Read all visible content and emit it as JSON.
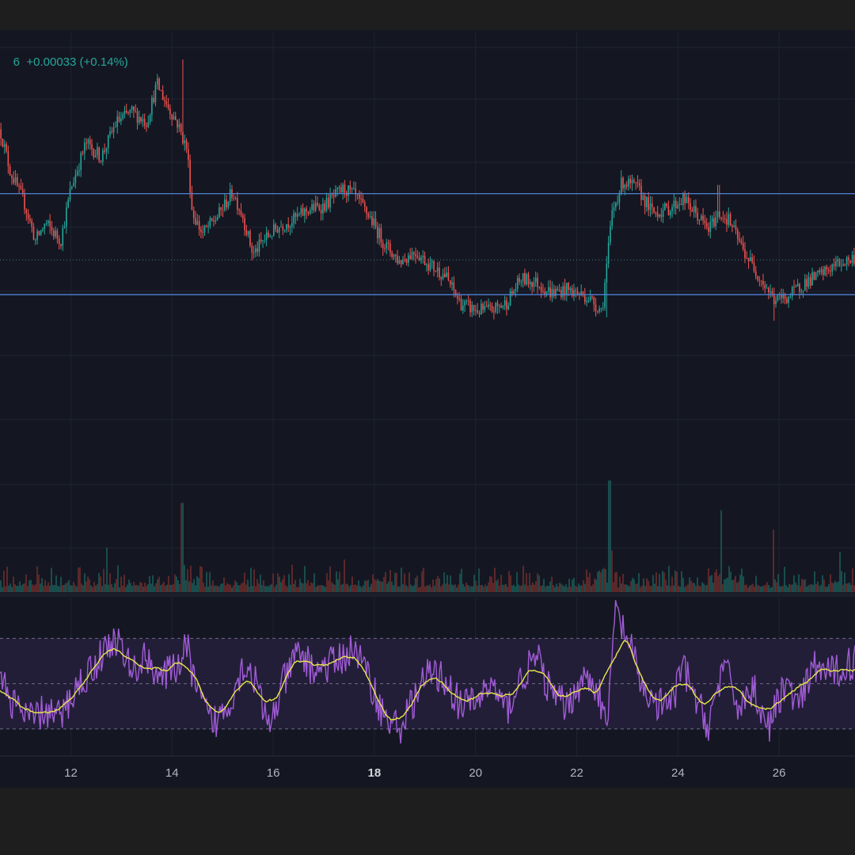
{
  "legend": {
    "prefix": "6",
    "change": "+0.00033",
    "change_pct": "(+0.14%)"
  },
  "colors": {
    "background": "#141722",
    "frame": "#1e1e1e",
    "grid": "#1f2331",
    "up": "#26a69a",
    "down": "#ef5350",
    "hline": "#4f82d6",
    "rsi": "#a05cd6",
    "rsi_ma": "#e8e84a",
    "rsi_band": "#231e38",
    "axis_text": "#b2b5be"
  },
  "chart_data": [
    {
      "type": "candlestick",
      "pane": "price",
      "x_unit": "day of month",
      "x_ticks": [
        {
          "label": "12",
          "bold": false
        },
        {
          "label": "14",
          "bold": false
        },
        {
          "label": "16",
          "bold": false
        },
        {
          "label": "18",
          "bold": true
        },
        {
          "label": "20",
          "bold": false
        },
        {
          "label": "22",
          "bold": false
        },
        {
          "label": "24",
          "bold": false
        },
        {
          "label": "26",
          "bold": false
        }
      ],
      "x_tick_values": [
        12,
        14,
        16,
        18,
        20,
        22,
        24,
        26
      ],
      "x_range": [
        10.6,
        27.5
      ],
      "y_range": [
        0,
        100
      ],
      "price_path": [
        [
          10.6,
          72
        ],
        [
          10.8,
          60
        ],
        [
          11.1,
          50
        ],
        [
          11.3,
          40
        ],
        [
          11.5,
          45
        ],
        [
          11.8,
          40
        ],
        [
          12.0,
          55
        ],
        [
          12.3,
          68
        ],
        [
          12.6,
          64
        ],
        [
          12.9,
          74
        ],
        [
          13.2,
          77
        ],
        [
          13.5,
          74
        ],
        [
          13.7,
          85
        ],
        [
          13.9,
          79
        ],
        [
          14.1,
          74
        ],
        [
          14.3,
          66
        ],
        [
          14.4,
          48
        ],
        [
          14.6,
          42
        ],
        [
          14.9,
          47
        ],
        [
          15.2,
          54
        ],
        [
          15.4,
          47
        ],
        [
          15.6,
          36
        ],
        [
          15.8,
          40
        ],
        [
          16.1,
          44
        ],
        [
          16.4,
          46
        ],
        [
          16.7,
          49
        ],
        [
          17.0,
          50
        ],
        [
          17.4,
          55
        ],
        [
          17.6,
          53
        ],
        [
          17.9,
          47
        ],
        [
          18.2,
          39
        ],
        [
          18.5,
          34
        ],
        [
          18.8,
          37
        ],
        [
          19.1,
          33
        ],
        [
          19.4,
          30
        ],
        [
          19.7,
          22
        ],
        [
          20.0,
          20
        ],
        [
          20.3,
          20
        ],
        [
          20.6,
          22
        ],
        [
          20.9,
          29
        ],
        [
          21.2,
          28
        ],
        [
          21.5,
          25
        ],
        [
          21.8,
          26
        ],
        [
          22.2,
          24
        ],
        [
          22.5,
          20
        ],
        [
          22.7,
          48
        ],
        [
          22.9,
          57
        ],
        [
          23.2,
          55
        ],
        [
          23.5,
          48
        ],
        [
          23.8,
          49
        ],
        [
          24.1,
          52
        ],
        [
          24.4,
          47
        ],
        [
          24.6,
          43
        ],
        [
          24.8,
          48
        ],
        [
          25.0,
          46
        ],
        [
          25.3,
          37
        ],
        [
          25.6,
          30
        ],
        [
          25.9,
          23
        ],
        [
          26.2,
          24
        ],
        [
          26.5,
          28
        ],
        [
          26.8,
          30
        ],
        [
          27.1,
          33
        ],
        [
          27.5,
          35
        ]
      ],
      "spikes": [
        {
          "x": 14.2,
          "y": 92
        },
        {
          "x": 17.6,
          "y": 57
        },
        {
          "x": 22.6,
          "y": 18
        },
        {
          "x": 24.8,
          "y": 56
        },
        {
          "x": 25.9,
          "y": 17
        }
      ]
    },
    {
      "type": "hline",
      "pane": "price",
      "levels": [
        53.5,
        24.5
      ],
      "dotted_levels": [
        34.5
      ]
    },
    {
      "type": "bar",
      "pane": "volume",
      "base_level": 3,
      "spikes": [
        {
          "x": 14.2,
          "v": 60
        },
        {
          "x": 12.7,
          "v": 30
        },
        {
          "x": 17.4,
          "v": 22
        },
        {
          "x": 22.65,
          "v": 75
        },
        {
          "x": 22.7,
          "v": 28
        },
        {
          "x": 24.85,
          "v": 55
        },
        {
          "x": 25.9,
          "v": 42
        },
        {
          "x": 27.2,
          "v": 27
        }
      ],
      "y_range": [
        0,
        100
      ]
    },
    {
      "type": "line",
      "pane": "rsi",
      "bands": [
        30,
        50,
        70
      ],
      "y_range": [
        18,
        88
      ],
      "rsi_path": [
        [
          10.6,
          52
        ],
        [
          10.9,
          40
        ],
        [
          11.2,
          34
        ],
        [
          11.5,
          38
        ],
        [
          11.8,
          35
        ],
        [
          12.1,
          48
        ],
        [
          12.4,
          56
        ],
        [
          12.7,
          66
        ],
        [
          12.9,
          70
        ],
        [
          13.2,
          55
        ],
        [
          13.5,
          62
        ],
        [
          13.8,
          52
        ],
        [
          14.1,
          58
        ],
        [
          14.3,
          66
        ],
        [
          14.5,
          45
        ],
        [
          14.8,
          32
        ],
        [
          15.1,
          40
        ],
        [
          15.4,
          58
        ],
        [
          15.6,
          55
        ],
        [
          15.9,
          30
        ],
        [
          16.2,
          50
        ],
        [
          16.5,
          64
        ],
        [
          16.8,
          56
        ],
        [
          17.1,
          58
        ],
        [
          17.4,
          62
        ],
        [
          17.6,
          66
        ],
        [
          17.9,
          52
        ],
        [
          18.2,
          35
        ],
        [
          18.5,
          30
        ],
        [
          18.8,
          44
        ],
        [
          19.1,
          55
        ],
        [
          19.4,
          52
        ],
        [
          19.7,
          40
        ],
        [
          20.0,
          42
        ],
        [
          20.3,
          50
        ],
        [
          20.6,
          38
        ],
        [
          20.9,
          52
        ],
        [
          21.2,
          62
        ],
        [
          21.5,
          45
        ],
        [
          21.8,
          40
        ],
        [
          22.1,
          52
        ],
        [
          22.4,
          50
        ],
        [
          22.6,
          28
        ],
        [
          22.75,
          82
        ],
        [
          23.0,
          70
        ],
        [
          23.3,
          48
        ],
        [
          23.6,
          40
        ],
        [
          23.9,
          42
        ],
        [
          24.1,
          58
        ],
        [
          24.4,
          40
        ],
        [
          24.6,
          32
        ],
        [
          24.9,
          58
        ],
        [
          25.2,
          40
        ],
        [
          25.5,
          48
        ],
        [
          25.8,
          30
        ],
        [
          26.1,
          50
        ],
        [
          26.4,
          40
        ],
        [
          26.7,
          58
        ],
        [
          27.0,
          54
        ],
        [
          27.3,
          58
        ],
        [
          27.5,
          60
        ]
      ]
    }
  ]
}
